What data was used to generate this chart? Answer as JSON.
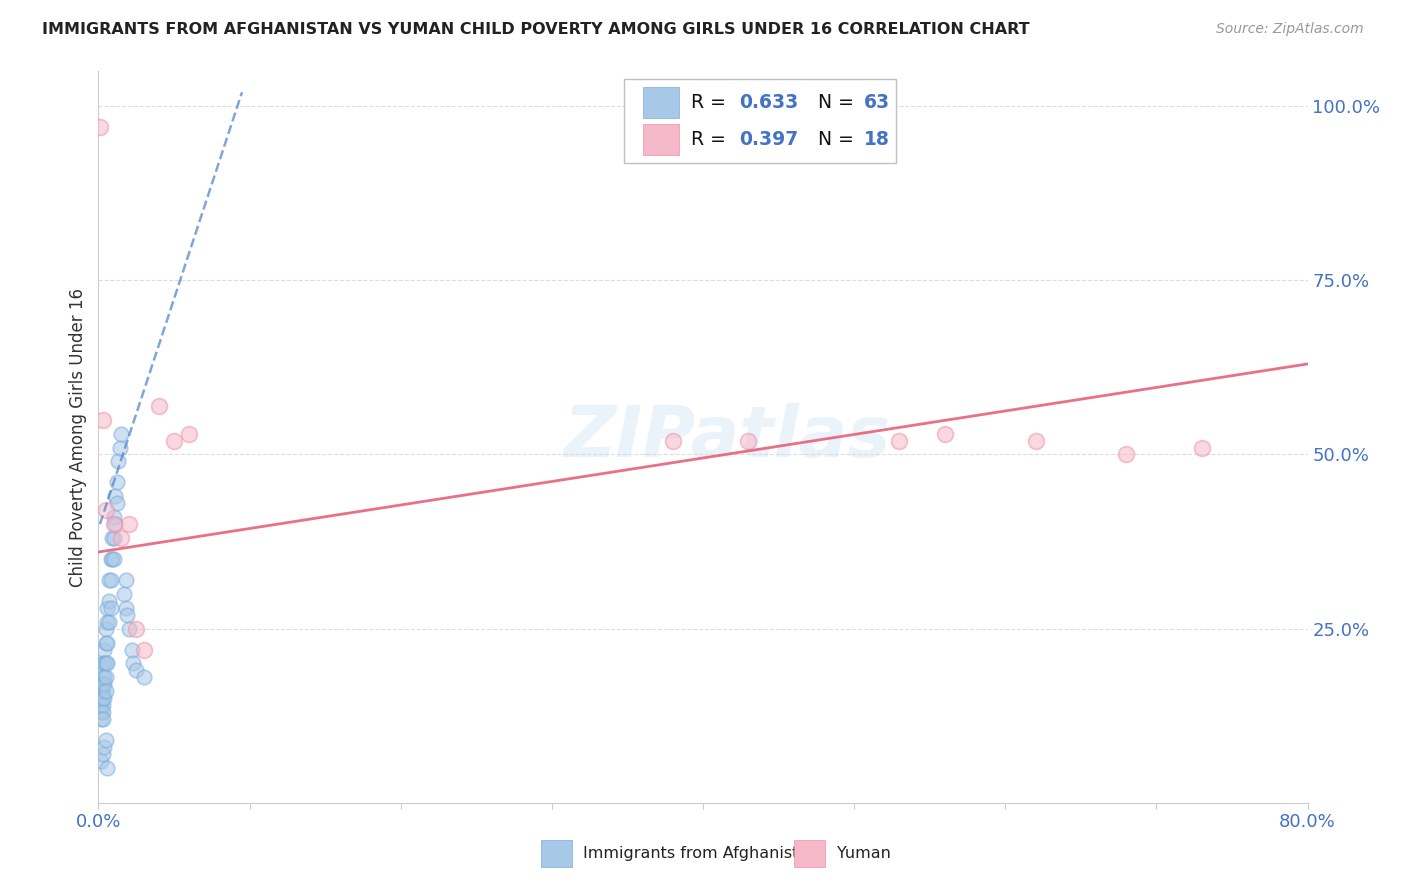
{
  "title": "IMMIGRANTS FROM AFGHANISTAN VS YUMAN CHILD POVERTY AMONG GIRLS UNDER 16 CORRELATION CHART",
  "source": "Source: ZipAtlas.com",
  "ylabel": "Child Poverty Among Girls Under 16",
  "xlim": [
    0.0,
    0.8
  ],
  "ylim": [
    0.0,
    1.05
  ],
  "xticks": [
    0.0,
    0.1,
    0.2,
    0.3,
    0.4,
    0.5,
    0.6,
    0.7,
    0.8
  ],
  "xtick_labels": [
    "0.0%",
    "",
    "",
    "",
    "",
    "",
    "",
    "",
    "80.0%"
  ],
  "ytick_labels_right": [
    "100.0%",
    "75.0%",
    "50.0%",
    "25.0%"
  ],
  "yticks_right": [
    1.0,
    0.75,
    0.5,
    0.25
  ],
  "legend_r1": "0.633",
  "legend_n1": "63",
  "legend_r2": "0.397",
  "legend_n2": "18",
  "blue_fill": "#a8c8e8",
  "blue_edge": "#7aadda",
  "pink_fill": "#f5b8c8",
  "pink_edge": "#f090aa",
  "blue_line_color": "#5588cc",
  "pink_line_color": "#e8607a",
  "title_color": "#222222",
  "source_color": "#999999",
  "axis_label_color": "#333333",
  "tick_color_blue": "#4472c4",
  "watermark": "ZIPatlas",
  "blue_scatter_x": [
    0.001,
    0.001,
    0.001,
    0.001,
    0.002,
    0.002,
    0.002,
    0.002,
    0.002,
    0.003,
    0.003,
    0.003,
    0.003,
    0.003,
    0.003,
    0.003,
    0.003,
    0.004,
    0.004,
    0.004,
    0.004,
    0.004,
    0.005,
    0.005,
    0.005,
    0.005,
    0.005,
    0.006,
    0.006,
    0.006,
    0.006,
    0.007,
    0.007,
    0.007,
    0.008,
    0.008,
    0.008,
    0.009,
    0.009,
    0.01,
    0.01,
    0.01,
    0.011,
    0.011,
    0.012,
    0.012,
    0.013,
    0.014,
    0.015,
    0.017,
    0.018,
    0.018,
    0.019,
    0.02,
    0.022,
    0.023,
    0.025,
    0.03,
    0.002,
    0.003,
    0.004,
    0.005,
    0.006
  ],
  "blue_scatter_y": [
    0.17,
    0.16,
    0.15,
    0.14,
    0.16,
    0.15,
    0.14,
    0.13,
    0.12,
    0.2,
    0.18,
    0.17,
    0.16,
    0.15,
    0.14,
    0.13,
    0.12,
    0.22,
    0.2,
    0.18,
    0.17,
    0.15,
    0.25,
    0.23,
    0.2,
    0.18,
    0.16,
    0.28,
    0.26,
    0.23,
    0.2,
    0.32,
    0.29,
    0.26,
    0.35,
    0.32,
    0.28,
    0.38,
    0.35,
    0.41,
    0.38,
    0.35,
    0.44,
    0.4,
    0.46,
    0.43,
    0.49,
    0.51,
    0.53,
    0.3,
    0.32,
    0.28,
    0.27,
    0.25,
    0.22,
    0.2,
    0.19,
    0.18,
    0.06,
    0.07,
    0.08,
    0.09,
    0.05
  ],
  "pink_scatter_x": [
    0.001,
    0.003,
    0.005,
    0.01,
    0.015,
    0.02,
    0.025,
    0.03,
    0.04,
    0.05,
    0.06,
    0.38,
    0.43,
    0.53,
    0.56,
    0.62,
    0.68,
    0.73
  ],
  "pink_scatter_y": [
    0.97,
    0.55,
    0.42,
    0.4,
    0.38,
    0.4,
    0.25,
    0.22,
    0.57,
    0.52,
    0.53,
    0.52,
    0.52,
    0.52,
    0.53,
    0.52,
    0.5,
    0.51
  ],
  "blue_trendline_x": [
    0.001,
    0.095
  ],
  "blue_trendline_y": [
    0.4,
    1.02
  ],
  "pink_trendline_x": [
    0.0,
    0.8
  ],
  "pink_trendline_y": [
    0.36,
    0.63
  ]
}
